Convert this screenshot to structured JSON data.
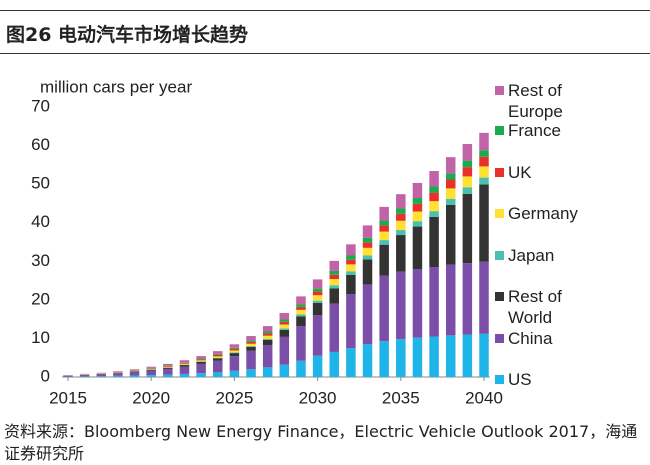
{
  "chart_data": {
    "type": "stacked_bar",
    "title": "图26 电动汽车市场增长趋势",
    "y_label": "million cars per year",
    "source": "资料来源：Bloomberg New Energy Finance，Electric Vehicle Outlook 2017，海通证券研究所",
    "x": [
      2015,
      2016,
      2017,
      2018,
      2019,
      2020,
      2021,
      2022,
      2023,
      2024,
      2025,
      2026,
      2027,
      2028,
      2029,
      2030,
      2031,
      2032,
      2033,
      2034,
      2035,
      2036,
      2037,
      2038,
      2039,
      2040
    ],
    "xlim": [
      2015,
      2040
    ],
    "xticks": [
      2015,
      2020,
      2025,
      2030,
      2035,
      2040
    ],
    "ylim": [
      0,
      70
    ],
    "yticks": [
      0,
      10,
      20,
      30,
      40,
      50,
      60,
      70
    ],
    "series": [
      {
        "name": "US",
        "color": "#1fb5e8",
        "values": [
          0.1,
          0.15,
          0.2,
          0.3,
          0.4,
          0.5,
          0.6,
          0.8,
          1.0,
          1.2,
          1.6,
          2.0,
          2.5,
          3.2,
          4.2,
          5.5,
          6.5,
          7.5,
          8.5,
          9.3,
          9.8,
          10.2,
          10.5,
          10.8,
          11,
          11.2
        ]
      },
      {
        "name": "China",
        "color": "#7b4fa8",
        "values": [
          0.2,
          0.35,
          0.5,
          0.7,
          0.9,
          1.2,
          1.5,
          1.9,
          2.4,
          3.0,
          3.8,
          4.8,
          5.8,
          7.2,
          9.0,
          10.5,
          12.5,
          14,
          15.5,
          17,
          17.5,
          17.8,
          18,
          18.3,
          18.5,
          18.7
        ]
      },
      {
        "name": "Rest of World",
        "color": "#333333",
        "values": [
          0.05,
          0.05,
          0.1,
          0.1,
          0.15,
          0.2,
          0.3,
          0.4,
          0.5,
          0.6,
          0.8,
          1.0,
          1.3,
          1.8,
          2.5,
          3.2,
          4.0,
          5.0,
          6.5,
          8.0,
          9.5,
          11,
          13,
          15.5,
          18,
          20
        ]
      },
      {
        "name": "Japan",
        "color": "#4bbfb0",
        "values": [
          0.02,
          0.03,
          0.04,
          0.05,
          0.06,
          0.07,
          0.08,
          0.1,
          0.12,
          0.15,
          0.18,
          0.22,
          0.3,
          0.4,
          0.5,
          0.6,
          0.8,
          0.9,
          1.0,
          1.2,
          1.3,
          1.4,
          1.5,
          1.6,
          1.7,
          1.8
        ]
      },
      {
        "name": "Germany",
        "color": "#ffe033",
        "values": [
          0.03,
          0.05,
          0.06,
          0.08,
          0.1,
          0.15,
          0.2,
          0.25,
          0.3,
          0.4,
          0.5,
          0.6,
          0.8,
          1.0,
          1.2,
          1.4,
          1.6,
          1.8,
          2.0,
          2.2,
          2.4,
          2.5,
          2.6,
          2.7,
          2.8,
          2.9
        ]
      },
      {
        "name": "UK",
        "color": "#e8312a",
        "values": [
          0.03,
          0.05,
          0.06,
          0.08,
          0.1,
          0.15,
          0.2,
          0.25,
          0.3,
          0.4,
          0.4,
          0.5,
          0.6,
          0.7,
          0.8,
          1.0,
          1.1,
          1.2,
          1.4,
          1.6,
          1.8,
          2.0,
          2.2,
          2.3,
          2.4,
          2.5
        ]
      },
      {
        "name": "France",
        "color": "#1aaa50",
        "values": [
          0.02,
          0.03,
          0.04,
          0.05,
          0.08,
          0.1,
          0.12,
          0.15,
          0.2,
          0.25,
          0.3,
          0.4,
          0.5,
          0.6,
          0.7,
          0.8,
          1.0,
          1.1,
          1.2,
          1.3,
          1.4,
          1.5,
          1.6,
          1.6,
          1.7,
          1.7
        ]
      },
      {
        "name": "Rest of Europe",
        "color": "#c263a8",
        "values": [
          0.05,
          0.1,
          0.1,
          0.15,
          0.2,
          0.3,
          0.4,
          0.5,
          0.6,
          0.7,
          0.9,
          1.1,
          1.4,
          1.7,
          2.0,
          2.3,
          2.6,
          2.9,
          3.2,
          3.5,
          3.7,
          3.9,
          4.0,
          4.2,
          4.3,
          4.5
        ]
      }
    ]
  }
}
